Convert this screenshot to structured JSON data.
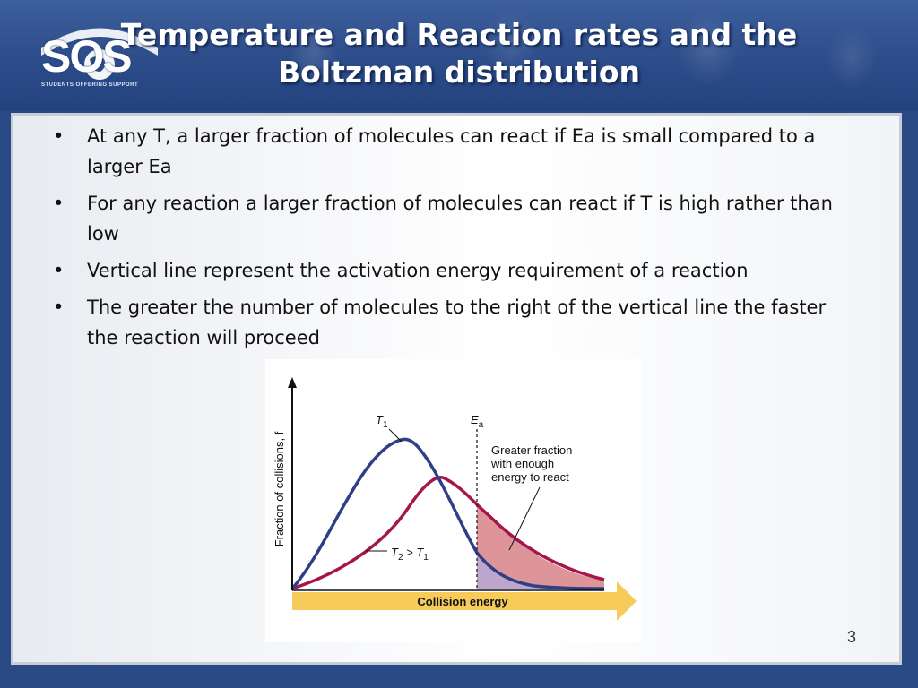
{
  "slide": {
    "title_line1": "Temperature and Reaction rates and the",
    "title_line2": "Boltzman distribution",
    "logo_text": "SOS",
    "logo_subtitle": "STUDENTS OFFERING SUPPORT",
    "page_number": "3"
  },
  "bullets": [
    {
      "text": "At any T, a larger fraction of molecules can react if Ea is small compared to a larger Ea"
    },
    {
      "text": "For any reaction a larger fraction of molecules can react if T is high rather than low"
    },
    {
      "text": "Vertical line represent the activation energy requirement of a reaction"
    },
    {
      "text": "The greater the number of molecules to the right of the vertical line the faster the reaction will proceed"
    }
  ],
  "figure": {
    "y_axis_label": "Fraction of collisions, f",
    "x_axis_label": "Collision energy",
    "t1_label": "T",
    "t1_sub": "1",
    "ea_label": "E",
    "ea_sub": "a",
    "t2_label_a": "T",
    "t2_sub_a": "2",
    "t2_label_mid": " > T",
    "t2_sub_b": "1",
    "annotation_line1": "Greater fraction",
    "annotation_line2": "with enough",
    "annotation_line3": "energy to react",
    "colors": {
      "t1_curve": "#2e3f86",
      "t2_curve": "#a3174a",
      "t2_fill": "#d98a8f",
      "t1_fill": "#b9a7cf",
      "arrow": "#f5c23c"
    }
  }
}
